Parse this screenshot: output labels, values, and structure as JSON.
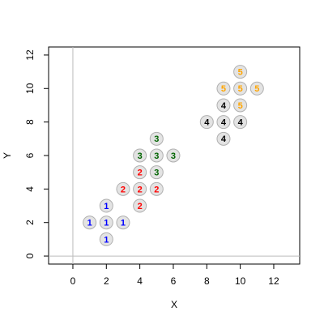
{
  "chart_data": {
    "type": "scatter",
    "xlabel": "X",
    "ylabel": "Y",
    "xlim": [
      -1.45,
      13.55
    ],
    "ylim": [
      -0.48,
      12.48
    ],
    "xticks": [
      0,
      2,
      4,
      6,
      8,
      10,
      12
    ],
    "yticks": [
      0,
      2,
      4,
      6,
      8,
      10,
      12
    ],
    "hline": 0,
    "vline": 0,
    "series": [
      {
        "name": "1",
        "color": "#0000ff",
        "x": [
          1,
          2,
          3,
          2,
          2
        ],
        "y": [
          2,
          2,
          2,
          3,
          1
        ]
      },
      {
        "name": "2",
        "color": "#ff0000",
        "x": [
          3,
          4,
          5,
          4,
          4
        ],
        "y": [
          4,
          4,
          4,
          5,
          3
        ]
      },
      {
        "name": "3",
        "color": "#006400",
        "x": [
          4,
          5,
          6,
          5,
          5
        ],
        "y": [
          6,
          6,
          6,
          7,
          5
        ]
      },
      {
        "name": "4",
        "color": "#000000",
        "x": [
          8,
          9,
          10,
          9,
          9
        ],
        "y": [
          8,
          8,
          8,
          9,
          7
        ]
      },
      {
        "name": "5",
        "color": "#ffa500",
        "x": [
          9,
          10,
          11,
          10,
          10
        ],
        "y": [
          10,
          10,
          10,
          11,
          9
        ]
      }
    ]
  }
}
